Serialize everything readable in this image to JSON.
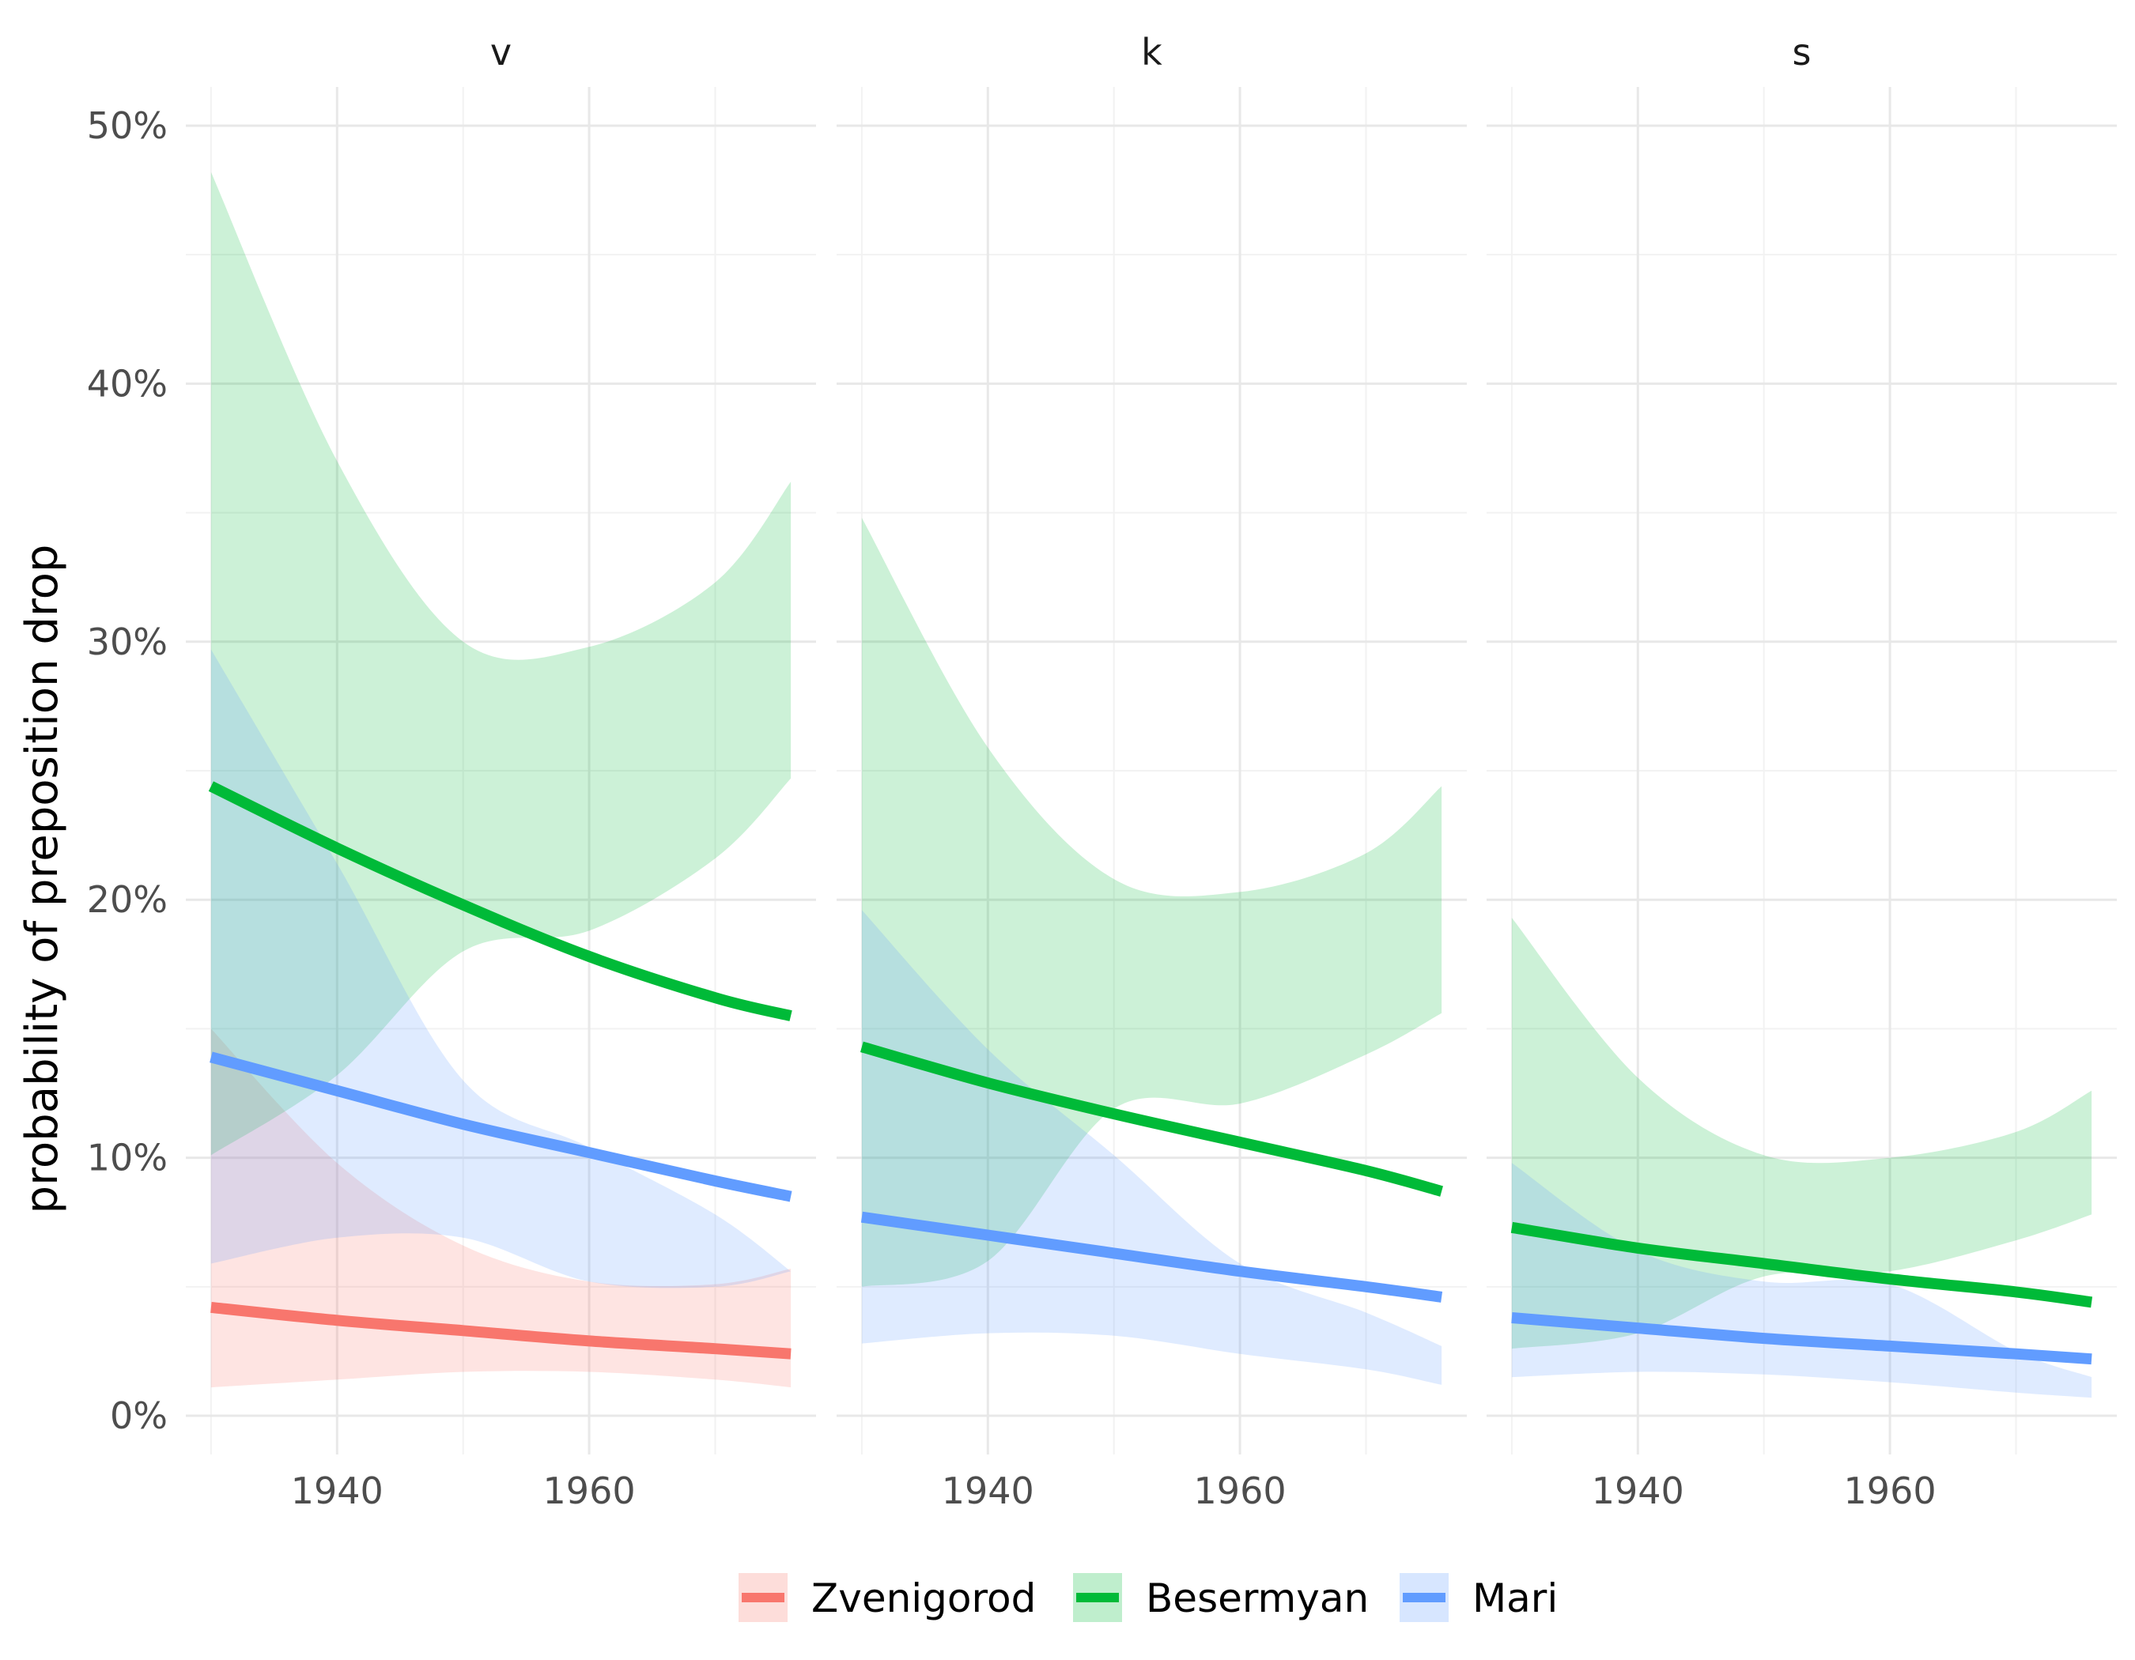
{
  "chart_data": {
    "type": "line",
    "ylabel": "probability of preposition drop",
    "xlabel": "",
    "x_ticks": [
      1940,
      1960
    ],
    "x_tick_labels": [
      "1940",
      "1960"
    ],
    "y_ticks": [
      0,
      10,
      20,
      30,
      40,
      50
    ],
    "y_tick_labels": [
      "0%",
      "10%",
      "20%",
      "30%",
      "40%",
      "50%"
    ],
    "xlim": [
      1928,
      1978
    ],
    "ylim": [
      -1.5,
      51.5
    ],
    "grid": true,
    "legend_position": "bottom",
    "legend": [
      "Zvenigorod",
      "Besermyan",
      "Mari"
    ],
    "colors": {
      "Zvenigorod": "#F8766D",
      "Besermyan": "#00BA38",
      "Mari": "#619CFF"
    },
    "panels": [
      {
        "title": "v",
        "series": [
          {
            "name": "Zvenigorod",
            "x": [
              1930,
              1940,
              1950,
              1960,
              1970,
              1976
            ],
            "y": [
              4.2,
              3.7,
              3.3,
              2.9,
              2.6,
              2.4
            ],
            "lower": [
              1.1,
              1.4,
              1.7,
              1.7,
              1.4,
              1.1
            ],
            "upper": [
              15.0,
              9.8,
              6.6,
              5.2,
              5.1,
              5.7
            ]
          },
          {
            "name": "Besermyan",
            "x": [
              1930,
              1940,
              1950,
              1960,
              1970,
              1976
            ],
            "y": [
              24.4,
              22.0,
              19.8,
              17.8,
              16.2,
              15.5
            ],
            "lower": [
              10.1,
              13.2,
              18.0,
              18.8,
              21.6,
              24.7
            ],
            "upper": [
              48.2,
              37.0,
              30.0,
              29.8,
              32.3,
              36.2
            ]
          },
          {
            "name": "Mari",
            "x": [
              1930,
              1940,
              1950,
              1960,
              1970,
              1976
            ],
            "y": [
              13.9,
              12.6,
              11.3,
              10.2,
              9.1,
              8.5
            ],
            "lower": [
              5.9,
              6.9,
              6.9,
              5.2,
              5.0,
              5.6
            ],
            "upper": [
              29.7,
              21.4,
              13.0,
              10.4,
              7.8,
              5.6
            ]
          }
        ]
      },
      {
        "title": "k",
        "series": [
          {
            "name": "Besermyan",
            "x": [
              1930,
              1940,
              1950,
              1960,
              1970,
              1976
            ],
            "y": [
              14.3,
              12.9,
              11.7,
              10.6,
              9.5,
              8.7
            ],
            "lower": [
              5.0,
              6.0,
              11.9,
              12.1,
              14.0,
              15.6
            ],
            "upper": [
              34.8,
              25.9,
              20.8,
              20.3,
              21.8,
              24.4
            ]
          },
          {
            "name": "Mari",
            "x": [
              1930,
              1940,
              1950,
              1960,
              1970,
              1976
            ],
            "y": [
              7.7,
              7.0,
              6.3,
              5.6,
              5.0,
              4.6
            ],
            "lower": [
              2.8,
              3.2,
              3.1,
              2.4,
              1.8,
              1.2
            ],
            "upper": [
              19.6,
              14.2,
              10.1,
              5.9,
              4.0,
              2.7
            ]
          }
        ]
      },
      {
        "title": "s",
        "series": [
          {
            "name": "Besermyan",
            "x": [
              1930,
              1940,
              1950,
              1960,
              1970,
              1976
            ],
            "y": [
              7.3,
              6.5,
              5.9,
              5.3,
              4.8,
              4.4
            ],
            "lower": [
              2.6,
              3.2,
              5.4,
              5.6,
              6.8,
              7.8
            ],
            "upper": [
              19.3,
              13.1,
              10.1,
              10.0,
              11.0,
              12.6
            ]
          },
          {
            "name": "Mari",
            "x": [
              1930,
              1940,
              1950,
              1960,
              1970,
              1976
            ],
            "y": [
              3.8,
              3.4,
              3.0,
              2.7,
              2.4,
              2.2
            ],
            "lower": [
              1.5,
              1.7,
              1.6,
              1.3,
              0.9,
              0.7
            ],
            "upper": [
              9.8,
              6.4,
              5.2,
              5.1,
              2.5,
              1.5
            ]
          }
        ]
      }
    ]
  }
}
